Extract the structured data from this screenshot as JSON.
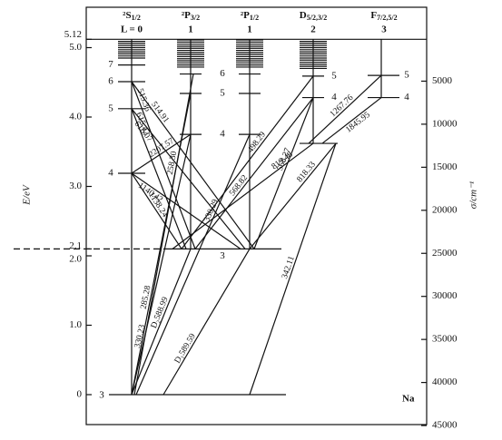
{
  "header": {
    "columns": [
      {
        "term": "²S",
        "sub": "1/2",
        "L": "L = 0"
      },
      {
        "term": "²P",
        "sub": "3/2",
        "L": "1"
      },
      {
        "term": "²P",
        "sub": "1/2",
        "L": "1"
      },
      {
        "term": "D",
        "sub": "5/2,3/2",
        "L": "2"
      },
      {
        "term": "F",
        "sub": "7/2,5/2",
        "L": "3"
      }
    ]
  },
  "left_axis": {
    "label": "E/eV",
    "ticks": [
      {
        "value": 5.12,
        "label": "5.12"
      },
      {
        "value": 5.0,
        "label": "5.0"
      },
      {
        "value": 4.0,
        "label": "4.0"
      },
      {
        "value": 3.0,
        "label": "3.0"
      },
      {
        "value": 2.1,
        "label": "2.1"
      },
      {
        "value": 2.0,
        "label": "2.0"
      },
      {
        "value": 1.0,
        "label": "1.0"
      },
      {
        "value": 0,
        "label": "0"
      }
    ]
  },
  "right_axis": {
    "label": "σ/cm⁻¹",
    "ticks": [
      5000,
      10000,
      15000,
      20000,
      25000,
      30000,
      35000,
      40000,
      45000
    ]
  },
  "level_labels": {
    "S": [
      "3",
      "4",
      "5",
      "6",
      "7"
    ],
    "P": [
      "3",
      "4",
      "5",
      "6"
    ],
    "D": [
      "4",
      "5"
    ],
    "F": [
      "4",
      "5"
    ]
  },
  "transitions": [
    "515.36",
    "514.91",
    "615.42",
    "616.07",
    "1138.24",
    "1140.42",
    "2207.57",
    "258.30",
    "330.29",
    "285.28",
    "330.23",
    "D₂588.99",
    "D₁589.59",
    "568.82",
    "568.27",
    "498.29",
    "819.48",
    "818.33",
    "1267.76",
    "1845.95",
    "342.11"
  ],
  "element": "Na"
}
